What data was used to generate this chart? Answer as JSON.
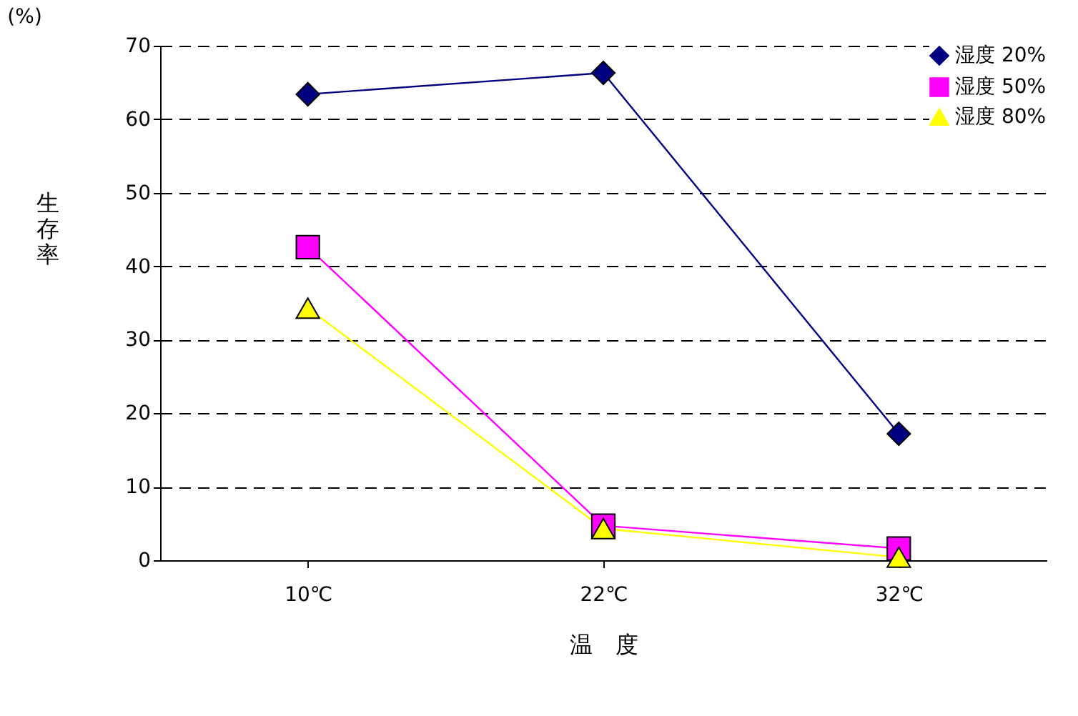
{
  "chart_data": {
    "type": "line",
    "annotations": [
      "(%)"
    ],
    "ylabel": "生存率",
    "xlabel": "温　度",
    "categories": [
      "10℃",
      "22℃",
      "32℃"
    ],
    "series": [
      {
        "name": "湿度 20%",
        "color": "#000080",
        "marker": "diamond",
        "values": [
          63.4,
          66.3,
          17.2
        ]
      },
      {
        "name": "湿度 50%",
        "color": "#ff00ff",
        "marker": "square",
        "values": [
          42.6,
          4.7,
          1.6
        ]
      },
      {
        "name": "湿度 80%",
        "color": "#ffff00",
        "marker": "triangle",
        "values": [
          34.3,
          4.3,
          0.4
        ]
      }
    ],
    "ylim": [
      0,
      70
    ],
    "yticks": [
      0,
      10,
      20,
      30,
      40,
      50,
      60,
      70
    ],
    "grid": "y",
    "legend": "top right"
  }
}
